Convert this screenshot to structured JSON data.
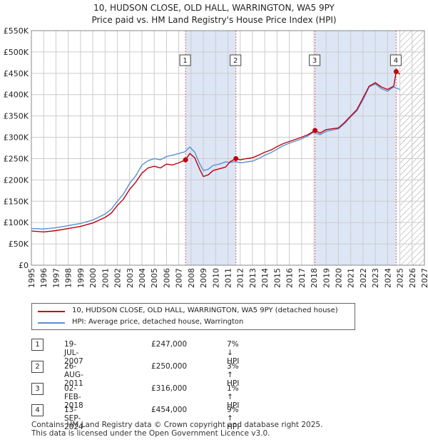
{
  "title_line1": "10, HUDSON CLOSE, OLD HALL, WARRINGTON, WA5 9PY",
  "title_line2": "Price paid vs. HM Land Registry's House Price Index (HPI)",
  "colors": {
    "property": "#c0000c",
    "hpi": "#5b8fd0",
    "shade": "#dde6f5",
    "marker_line": "#e06060"
  },
  "chart_data": {
    "type": "line",
    "x_range": [
      1995,
      2027
    ],
    "ylim": [
      0,
      550000
    ],
    "y_ticks": [
      0,
      50000,
      100000,
      150000,
      200000,
      250000,
      300000,
      350000,
      400000,
      450000,
      500000,
      550000
    ],
    "y_tick_labels": [
      "£0",
      "£50K",
      "£100K",
      "£150K",
      "£200K",
      "£250K",
      "£300K",
      "£350K",
      "£400K",
      "£450K",
      "£500K",
      "£550K"
    ],
    "x_ticks": [
      1995,
      1996,
      1997,
      1998,
      1999,
      2000,
      2001,
      2002,
      2003,
      2004,
      2005,
      2006,
      2007,
      2008,
      2009,
      2010,
      2011,
      2012,
      2013,
      2014,
      2015,
      2016,
      2017,
      2018,
      2019,
      2020,
      2021,
      2022,
      2023,
      2024,
      2025,
      2026,
      2027
    ],
    "x_tick_labels": [
      "1995",
      "1996",
      "1997",
      "1998",
      "1999",
      "2000",
      "2001",
      "2002",
      "2003",
      "2004",
      "2005",
      "2006",
      "2007",
      "2008",
      "2009",
      "2010",
      "2011",
      "2012",
      "2013",
      "2014",
      "2015",
      "2016",
      "2017",
      "2018",
      "2019",
      "2020",
      "2021",
      "2022",
      "2023",
      "2024",
      "2025",
      "2026",
      "2027"
    ],
    "grid": true,
    "forecast_start": 2025.0,
    "series": [
      {
        "name": "10, HUDSON CLOSE, OLD HALL, WARRINGTON, WA5 9PY (detached house)",
        "x": [
          1995.0,
          1996.0,
          1997.0,
          1998.0,
          1999.0,
          2000.0,
          2001.0,
          2001.5,
          2002.0,
          2002.5,
          2003.0,
          2003.5,
          2004.0,
          2004.5,
          2005.0,
          2005.5,
          2006.0,
          2006.5,
          2007.0,
          2007.55,
          2007.9,
          2008.3,
          2008.7,
          2009.0,
          2009.4,
          2009.8,
          2010.3,
          2010.8,
          2011.2,
          2011.65,
          2012.0,
          2012.5,
          2013.0,
          2013.5,
          2014.0,
          2014.5,
          2015.0,
          2015.5,
          2016.0,
          2016.5,
          2017.0,
          2017.5,
          2018.09,
          2018.5,
          2019.0,
          2019.5,
          2020.0,
          2020.5,
          2021.0,
          2021.5,
          2022.0,
          2022.5,
          2023.0,
          2023.5,
          2024.0,
          2024.5,
          2024.7,
          2025.0
        ],
        "y": [
          80000,
          78000,
          81000,
          86000,
          91000,
          99000,
          112000,
          122000,
          140000,
          155000,
          178000,
          195000,
          216000,
          228000,
          232000,
          228000,
          237000,
          235000,
          240000,
          247000,
          262000,
          252000,
          225000,
          208000,
          212000,
          222000,
          226000,
          230000,
          243000,
          250000,
          247000,
          250000,
          252000,
          258000,
          265000,
          270000,
          278000,
          285000,
          290000,
          295000,
          300000,
          306000,
          316000,
          310000,
          318000,
          320000,
          322000,
          335000,
          350000,
          365000,
          392000,
          420000,
          428000,
          418000,
          412000,
          420000,
          454000,
          448000
        ]
      },
      {
        "name": "HPI: Average price, detached house, Warrington",
        "x": [
          1995.0,
          1996.0,
          1997.0,
          1998.0,
          1999.0,
          2000.0,
          2001.0,
          2001.5,
          2002.0,
          2002.5,
          2003.0,
          2003.5,
          2004.0,
          2004.5,
          2005.0,
          2005.5,
          2006.0,
          2006.5,
          2007.0,
          2007.5,
          2007.9,
          2008.3,
          2008.7,
          2009.0,
          2009.4,
          2009.8,
          2010.3,
          2010.8,
          2011.2,
          2011.6,
          2012.0,
          2012.5,
          2013.0,
          2013.5,
          2014.0,
          2014.5,
          2015.0,
          2015.5,
          2016.0,
          2016.5,
          2017.0,
          2017.5,
          2018.0,
          2018.5,
          2019.0,
          2019.5,
          2020.0,
          2020.5,
          2021.0,
          2021.5,
          2022.0,
          2022.5,
          2023.0,
          2023.5,
          2024.0,
          2024.5,
          2025.0
        ],
        "y": [
          86000,
          85000,
          88000,
          93000,
          98000,
          106000,
          120000,
          131000,
          150000,
          167000,
          192000,
          210000,
          235000,
          245000,
          250000,
          247000,
          255000,
          258000,
          262000,
          266000,
          277000,
          265000,
          238000,
          222000,
          225000,
          234000,
          237000,
          242000,
          241000,
          243000,
          240000,
          242000,
          244000,
          250000,
          258000,
          264000,
          272000,
          280000,
          286000,
          291000,
          296000,
          303000,
          312000,
          306000,
          314000,
          317000,
          320000,
          332000,
          348000,
          362000,
          388000,
          418000,
          425000,
          414000,
          408000,
          418000,
          412000
        ]
      }
    ],
    "sales": [
      {
        "label": "1",
        "x": 2007.55,
        "y": 247000
      },
      {
        "label": "2",
        "x": 2011.65,
        "y": 250000
      },
      {
        "label": "3",
        "x": 2018.09,
        "y": 316000
      },
      {
        "label": "4",
        "x": 2024.7,
        "y": 454000
      }
    ],
    "shaded_periods": [
      [
        2007.55,
        2011.65
      ],
      [
        2018.09,
        2024.7
      ]
    ]
  },
  "legend": {
    "property_label": "10, HUDSON CLOSE, OLD HALL, WARRINGTON, WA5 9PY (detached house)",
    "hpi_label": "HPI: Average price, detached house, Warrington"
  },
  "transactions": [
    {
      "num": "1",
      "date": "19-JUL-2007",
      "price": "£247,000",
      "hpi": "7% ↓ HPI"
    },
    {
      "num": "2",
      "date": "26-AUG-2011",
      "price": "£250,000",
      "hpi": "3% ↑ HPI"
    },
    {
      "num": "3",
      "date": "02-FEB-2018",
      "price": "£316,000",
      "hpi": "1% ↑ HPI"
    },
    {
      "num": "4",
      "date": "13-SEP-2024",
      "price": "£454,000",
      "hpi": "9% ↑ HPI"
    }
  ],
  "footer_line1": "Contains HM Land Registry data © Crown copyright and database right 2025.",
  "footer_line2": "This data is licensed under the Open Government Licence v3.0."
}
